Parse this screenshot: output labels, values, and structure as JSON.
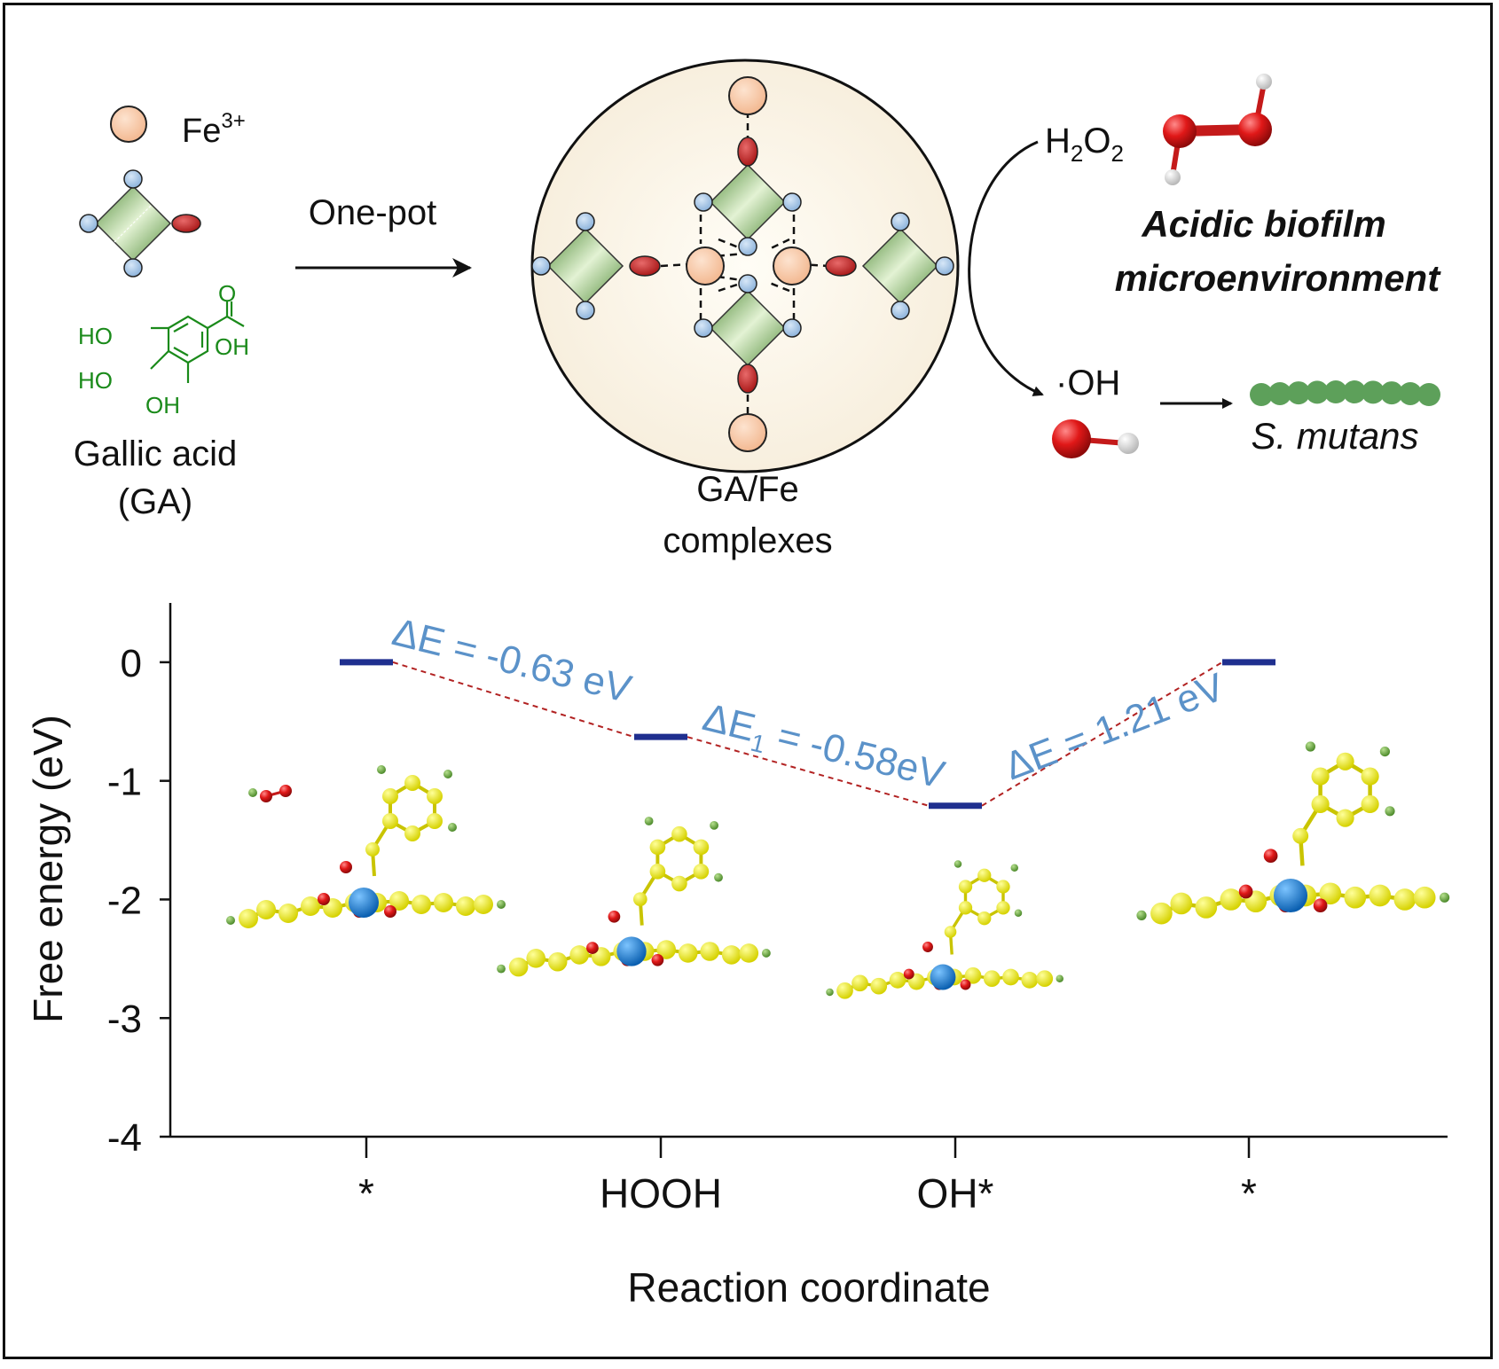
{
  "legend": {
    "fe_label": "Fe",
    "fe_charge": "3+",
    "ga_name": "Gallic acid",
    "ga_abbr": "(GA)",
    "ga_structure_labels": {
      "ho_top": "HO",
      "ho_mid": "HO",
      "oh_bottom": "OH",
      "oh_acid": "OH",
      "o_carbonyl": "O"
    }
  },
  "process": {
    "arrow_label": "One-pot"
  },
  "complex": {
    "caption_line1": "GA/Fe",
    "caption_line2": "complexes"
  },
  "mechanism": {
    "h2o2_h": "H",
    "h2o2_sub1": "2",
    "h2o2_o": "O",
    "h2o2_sub2": "2",
    "environment_line1": "Acidic biofilm",
    "environment_line2": "microenvironment",
    "radical": "·OH",
    "bacteria": "S. mutans"
  },
  "colors": {
    "fe_fill": "#f8c9a6",
    "ga_green": "#6aa84f",
    "oxygen_red": "#d81f1f",
    "hydroxyl_blue": "#a9c8e8",
    "level_blue": "#1f2f8f",
    "annotation_blue": "#5b92c9",
    "connector_red": "#b22222",
    "structure_green": "#1a8a1a",
    "bacteria_green": "#5da05a"
  },
  "chart_data": {
    "type": "energy-level",
    "ylabel": "Free energy (eV)",
    "xlabel": "Reaction coordinate",
    "ylim": [
      -4,
      0.5
    ],
    "yticks": [
      "0",
      "-1",
      "-2",
      "-3",
      "-4"
    ],
    "ytick_values": [
      0,
      -1,
      -2,
      -3,
      -4
    ],
    "categories": [
      "*",
      "HOOH",
      "OH*",
      "*"
    ],
    "values": [
      0,
      -0.63,
      -1.21,
      0
    ],
    "annotations": [
      {
        "text": "ΔE = -0.63 eV"
      },
      {
        "text_prefix": "ΔE",
        "subscript": "1",
        "text_suffix": " = -0.58eV"
      },
      {
        "text": "ΔE = 1.21 eV"
      }
    ]
  }
}
